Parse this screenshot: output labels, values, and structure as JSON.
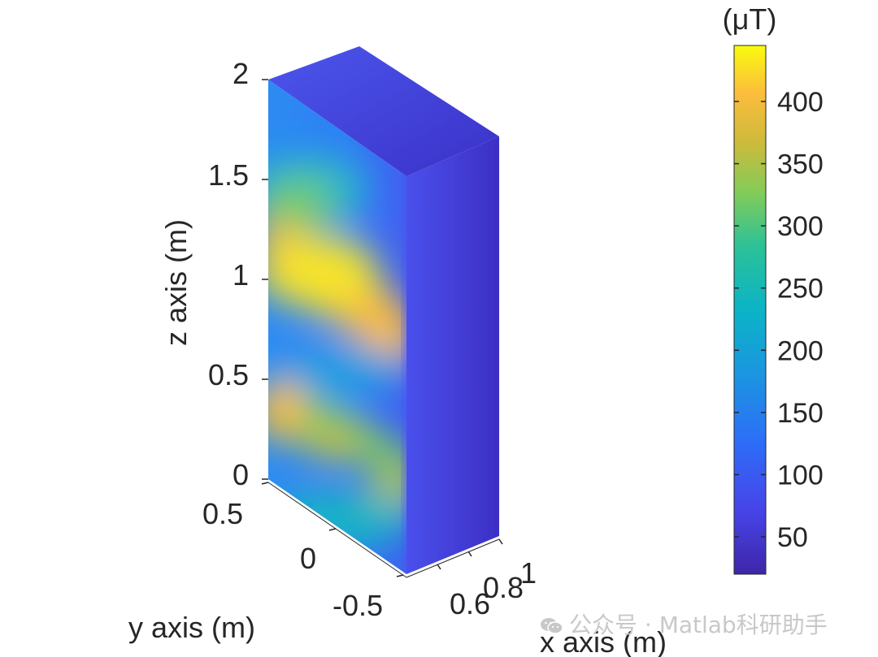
{
  "chart_data": {
    "type": "heatmap",
    "subtype": "3d-box-surface",
    "x_axis": {
      "label": "x axis (m)",
      "ticks": [
        "0.6",
        "0.8",
        "1"
      ],
      "range": [
        0.5,
        1.0
      ]
    },
    "y_axis": {
      "label": "y axis (m)",
      "ticks": [
        "-0.5",
        "0",
        "0.5"
      ],
      "range": [
        -0.6,
        0.6
      ]
    },
    "z_axis": {
      "label": "z axis (m)",
      "ticks": [
        "0",
        "0.5",
        "1",
        "1.5",
        "2"
      ],
      "range": [
        0,
        2
      ]
    },
    "colorbar": {
      "unit": "(μT)",
      "ticks": [
        "50",
        "100",
        "150",
        "200",
        "250",
        "300",
        "350",
        "400"
      ],
      "tick_values": [
        50,
        100,
        150,
        200,
        250,
        300,
        350,
        400
      ],
      "range": [
        20,
        445
      ],
      "colormap": "parula"
    },
    "field_features": [
      {
        "face": "front",
        "z": 1.0,
        "value": 430
      },
      {
        "face": "front",
        "z": 0.3,
        "value": 370
      },
      {
        "face": "front",
        "z": 0.6,
        "value": 190
      },
      {
        "face": "front",
        "z": 1.45,
        "value": 290
      },
      {
        "face": "side",
        "value": 60
      },
      {
        "face": "top",
        "value": 90
      }
    ]
  },
  "watermark": {
    "text": "公众号 · Matlab科研助手"
  }
}
